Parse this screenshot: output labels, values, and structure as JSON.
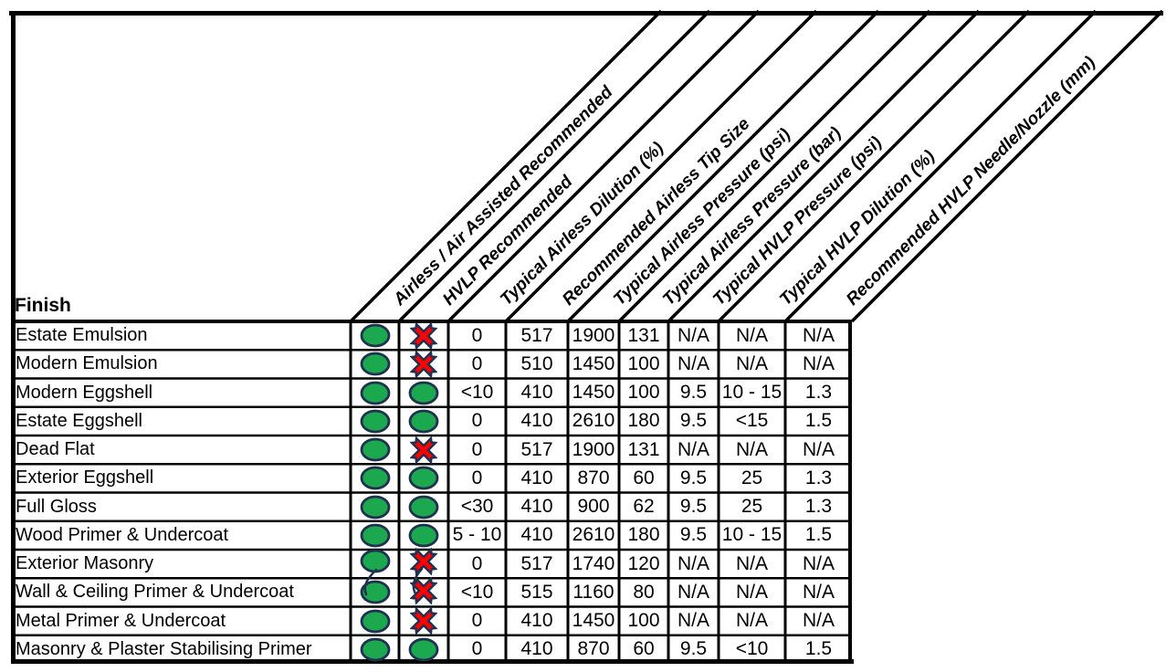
{
  "table": {
    "corner_label": "Finish",
    "columns": [
      "Airless / Air Assisted Recommended",
      "HVLP Recommended",
      "Typical Airless Dilution (%)",
      "Recommended Airless Tip Size",
      "Typical Airless Pressure (psi)",
      "Typical Airless Pressure (bar)",
      "Typical HVLP Pressure (psi)",
      "Typical HVLP Dilution (%)",
      "Recommended HVLP Needle/Nozzle (mm)"
    ],
    "icon_legend": {
      "yes": "green-oval-icon",
      "no": "red-cross-icon"
    },
    "colors": {
      "yes_fill": "#1CA84E",
      "no_fill": "#FF0000",
      "icon_outline": "#203150",
      "grid": "#000000"
    },
    "rows": [
      {
        "finish": "Estate Emulsion",
        "airless": "yes",
        "hvlp": "no",
        "values": [
          "0",
          "517",
          "1900",
          "131",
          "N/A",
          "N/A",
          "N/A"
        ]
      },
      {
        "finish": "Modern Emulsion",
        "airless": "yes",
        "hvlp": "no",
        "values": [
          "0",
          "510",
          "1450",
          "100",
          "N/A",
          "N/A",
          "N/A"
        ]
      },
      {
        "finish": "Modern Eggshell",
        "airless": "yes",
        "hvlp": "yes",
        "values": [
          "<10",
          "410",
          "1450",
          "100",
          "9.5",
          "10 - 15",
          "1.3"
        ]
      },
      {
        "finish": "Estate Eggshell",
        "airless": "yes",
        "hvlp": "yes",
        "values": [
          "0",
          "410",
          "2610",
          "180",
          "9.5",
          "<15",
          "1.5"
        ]
      },
      {
        "finish": "Dead Flat",
        "airless": "yes",
        "hvlp": "no",
        "values": [
          "0",
          "517",
          "1900",
          "131",
          "N/A",
          "N/A",
          "N/A"
        ]
      },
      {
        "finish": "Exterior Eggshell",
        "airless": "yes",
        "hvlp": "yes",
        "values": [
          "0",
          "410",
          "870",
          "60",
          "9.5",
          "25",
          "1.3"
        ]
      },
      {
        "finish": "Full Gloss",
        "airless": "yes",
        "hvlp": "yes",
        "values": [
          "<30",
          "410",
          "900",
          "62",
          "9.5",
          "25",
          "1.3"
        ]
      },
      {
        "finish": "Wood Primer & Undercoat",
        "airless": "yes",
        "hvlp": "yes",
        "values": [
          "5 - 10",
          "410",
          "2610",
          "180",
          "9.5",
          "10 - 15",
          "1.5"
        ]
      },
      {
        "finish": "Exterior Masonry",
        "airless": "yes",
        "hvlp": "no",
        "values": [
          "0",
          "517",
          "1740",
          "120",
          "N/A",
          "N/A",
          "N/A"
        ]
      },
      {
        "finish": "Wall & Ceiling Primer & Undercoat",
        "airless": "yes",
        "hvlp": "no",
        "values": [
          "<10",
          "515",
          "1160",
          "80",
          "N/A",
          "N/A",
          "N/A"
        ]
      },
      {
        "finish": "Metal Primer & Undercoat",
        "airless": "yes",
        "hvlp": "no",
        "values": [
          "0",
          "410",
          "1450",
          "100",
          "N/A",
          "N/A",
          "N/A"
        ]
      },
      {
        "finish": "Masonry & Plaster Stabilising Primer",
        "airless": "yes",
        "hvlp": "yes",
        "values": [
          "0",
          "410",
          "870",
          "60",
          "9.5",
          "<10",
          "1.5"
        ]
      }
    ]
  }
}
